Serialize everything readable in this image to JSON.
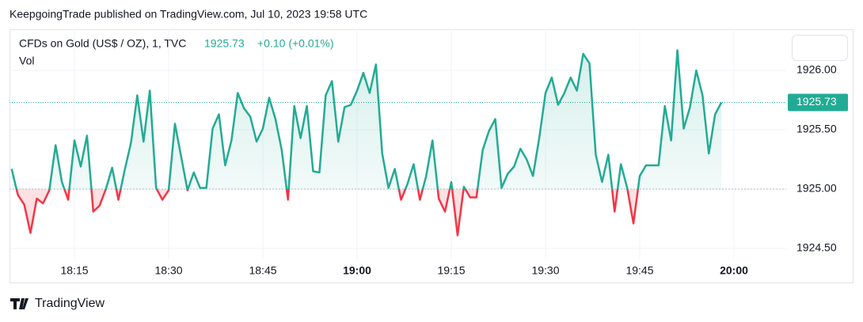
{
  "chart_data": {
    "type": "baseline",
    "header": "KeepgoingTrade published on TradingView.com, Jul 10, 2023 19:58 UTC",
    "title": "CFDs on Gold (US$ / OZ), 1, TVC",
    "legend_price": "1925.73",
    "legend_change": "+0.10 (+0.01%)",
    "volume_label": "Vol",
    "footer": "TradingView",
    "baseline": 1925,
    "color_above": "#22ab94",
    "color_below": "#f23645",
    "x": [
      1085,
      1086,
      1087,
      1088,
      1089,
      1090,
      1091,
      1092,
      1093,
      1094,
      1095,
      1096,
      1097,
      1098,
      1099,
      1100,
      1101,
      1102,
      1103,
      1104,
      1105,
      1106,
      1107,
      1108,
      1109,
      1110,
      1111,
      1112,
      1113,
      1114,
      1115,
      1116,
      1117,
      1118,
      1119,
      1120,
      1121,
      1122,
      1123,
      1124,
      1125,
      1126,
      1127,
      1128,
      1129,
      1130,
      1131,
      1132,
      1133,
      1134,
      1135,
      1136,
      1137,
      1138,
      1139,
      1140,
      1141,
      1142,
      1143,
      1144,
      1145,
      1146,
      1147,
      1148,
      1149,
      1150,
      1151,
      1152,
      1153,
      1154,
      1155,
      1156,
      1157,
      1158,
      1159,
      1160,
      1161,
      1162,
      1163,
      1164,
      1165,
      1166,
      1167,
      1168,
      1169,
      1170,
      1171,
      1172,
      1173,
      1174,
      1175,
      1176,
      1177,
      1178,
      1179,
      1180,
      1181,
      1182,
      1183,
      1184,
      1185,
      1186,
      1187,
      1188,
      1189,
      1190,
      1191,
      1192,
      1193,
      1194,
      1195,
      1196,
      1197,
      1198
    ],
    "values": [
      1925.17,
      1924.95,
      1924.87,
      1924.63,
      1924.92,
      1924.88,
      1924.99,
      1925.37,
      1925.06,
      1924.91,
      1925.41,
      1925.19,
      1925.45,
      1924.81,
      1924.86,
      1925.0,
      1925.18,
      1924.91,
      1925.16,
      1925.39,
      1925.79,
      1925.4,
      1925.83,
      1925.01,
      1924.91,
      1924.99,
      1925.55,
      1925.27,
      1924.99,
      1925.14,
      1925.01,
      1925.01,
      1925.51,
      1925.63,
      1925.2,
      1925.41,
      1925.81,
      1925.68,
      1925.61,
      1925.4,
      1925.51,
      1925.77,
      1925.59,
      1925.33,
      1924.91,
      1925.7,
      1925.43,
      1925.7,
      1925.15,
      1925.14,
      1925.79,
      1925.91,
      1925.4,
      1925.69,
      1925.71,
      1925.83,
      1925.98,
      1925.81,
      1926.05,
      1925.3,
      1925.01,
      1925.17,
      1924.91,
      1925.04,
      1925.21,
      1924.91,
      1925.11,
      1925.41,
      1924.92,
      1924.81,
      1925.06,
      1924.61,
      1925.02,
      1924.93,
      1924.93,
      1925.33,
      1925.49,
      1925.59,
      1925.01,
      1925.13,
      1925.19,
      1925.34,
      1925.25,
      1925.11,
      1925.43,
      1925.81,
      1925.94,
      1925.71,
      1925.81,
      1925.94,
      1925.83,
      1926.14,
      1926.06,
      1925.29,
      1925.06,
      1925.29,
      1924.81,
      1925.21,
      1925.01,
      1924.71,
      1925.11,
      1925.2,
      1925.2,
      1925.2,
      1925.7,
      1925.41,
      1926.17,
      1925.51,
      1925.69,
      1926.0,
      1925.79,
      1925.3,
      1925.63,
      1925.73
    ],
    "xlim": [
      1084.66,
      1208.32
    ],
    "ylim": [
      1924.413,
      1926.347
    ],
    "xticks": [
      {
        "value": 1095,
        "label": "18:15"
      },
      {
        "value": 1110,
        "label": "18:30"
      },
      {
        "value": 1125,
        "label": "18:45"
      },
      {
        "value": 1140,
        "label": "19:00"
      },
      {
        "value": 1155,
        "label": "19:15"
      },
      {
        "value": 1170,
        "label": "19:30"
      },
      {
        "value": 1185,
        "label": "19:45"
      },
      {
        "value": 1200,
        "label": "20:00"
      }
    ],
    "yticks": [
      {
        "value": 1924.5,
        "label": "1924.50"
      },
      {
        "value": 1925,
        "label": "1925.00"
      },
      {
        "value": 1925.5,
        "label": "1925.50"
      },
      {
        "value": 1926,
        "label": "1926.00"
      }
    ],
    "grid": true
  }
}
